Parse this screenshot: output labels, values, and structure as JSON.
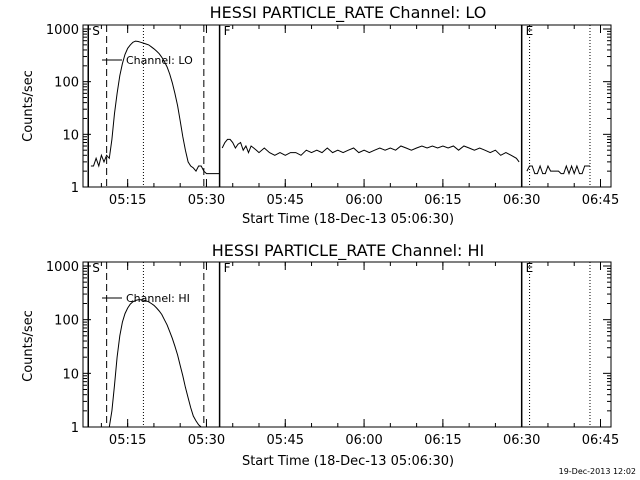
{
  "chart_data": [
    {
      "type": "line",
      "title": "HESSI PARTICLE_RATE Channel: LO",
      "xlabel": "Start Time (18-Dec-13 05:06:30)",
      "ylabel": "Counts/sec",
      "y_scale": "log",
      "xlim": [
        "05:06:30",
        "06:47:00"
      ],
      "ylim": [
        1,
        1000
      ],
      "x_ticks": [
        "05:15",
        "05:30",
        "05:45",
        "06:00",
        "06:15",
        "06:30",
        "06:45"
      ],
      "y_ticks": [
        "1",
        "10",
        "100",
        "1000"
      ],
      "legend": "Channel: LO",
      "markers": [
        {
          "label": "S",
          "time": "05:07:30",
          "style": "solid"
        },
        {
          "label": "",
          "time": "05:11:00",
          "style": "dashed"
        },
        {
          "label": "",
          "time": "05:18:00",
          "style": "dotted"
        },
        {
          "label": "",
          "time": "05:29:30",
          "style": "dashed"
        },
        {
          "label": "F",
          "time": "05:32:30",
          "style": "solid"
        },
        {
          "label": "E",
          "time": "06:30:00",
          "style": "solid"
        },
        {
          "label": "",
          "time": "06:31:30",
          "style": "dotted"
        },
        {
          "label": "",
          "time": "06:43:00",
          "style": "dotted"
        }
      ],
      "series": [
        {
          "segments": [
            {
              "time": [
                "05:08:00",
                "05:08:30",
                "05:09:00",
                "05:09:30",
                "05:10:00",
                "05:10:30",
                "05:11:00",
                "05:11:30",
                "05:12:00",
                "05:12:30",
                "05:13:00",
                "05:13:30",
                "05:14:00",
                "05:14:30",
                "05:15:00",
                "05:15:30",
                "05:16:00",
                "05:16:30",
                "05:17:00",
                "05:17:30",
                "05:18:00",
                "05:18:30",
                "05:19:00",
                "05:19:30",
                "05:20:00",
                "05:20:30",
                "05:21:00",
                "05:21:30",
                "05:22:00",
                "05:22:30",
                "05:23:00",
                "05:23:30",
                "05:24:00",
                "05:24:30",
                "05:25:00",
                "05:25:30",
                "05:26:00",
                "05:26:30",
                "05:27:00",
                "05:27:30",
                "05:28:00",
                "05:28:30",
                "05:29:00",
                "05:29:30",
                "05:30:00",
                "05:30:30",
                "05:31:00",
                "05:31:30",
                "05:32:00",
                "05:32:30"
              ],
              "counts": [
                2.5,
                2.5,
                3.5,
                2.5,
                4,
                3,
                4,
                3.5,
                8,
                25,
                60,
                130,
                220,
                330,
                430,
                500,
                560,
                590,
                580,
                560,
                540,
                520,
                500,
                460,
                420,
                380,
                340,
                290,
                240,
                190,
                140,
                95,
                60,
                35,
                18,
                9,
                5,
                3,
                2.5,
                2.3,
                2,
                2.5,
                2.5,
                2,
                1.8,
                1.8,
                1.8,
                1.8,
                1.8,
                1.8
              ]
            },
            {
              "time": [
                "05:33:00",
                "05:33:30",
                "05:34:00",
                "05:34:30",
                "05:35:00",
                "05:35:30",
                "05:36:00",
                "05:36:30",
                "05:37:00",
                "05:37:30",
                "05:38:00",
                "05:38:30",
                "05:39:00",
                "05:39:30",
                "05:40:00",
                "05:41:00",
                "05:42:00",
                "05:43:00",
                "05:44:00",
                "05:45:00",
                "05:46:00",
                "05:47:00",
                "05:48:00",
                "05:49:00",
                "05:50:00",
                "05:51:00",
                "05:52:00",
                "05:53:00",
                "05:54:00",
                "05:55:00",
                "05:56:00",
                "05:57:00",
                "05:58:00",
                "05:59:00",
                "06:00:00",
                "06:01:00",
                "06:02:00",
                "06:03:00",
                "06:04:00",
                "06:05:00",
                "06:06:00",
                "06:07:00",
                "06:08:00",
                "06:09:00",
                "06:10:00",
                "06:11:00",
                "06:12:00",
                "06:13:00",
                "06:14:00",
                "06:15:00",
                "06:16:00",
                "06:17:00",
                "06:18:00",
                "06:19:00",
                "06:20:00",
                "06:21:00",
                "06:22:00",
                "06:23:00",
                "06:24:00",
                "06:25:00",
                "06:26:00",
                "06:27:00",
                "06:28:00",
                "06:29:00",
                "06:29:30"
              ],
              "counts": [
                5.5,
                7,
                8,
                8,
                7,
                5.5,
                6.5,
                7,
                5,
                6,
                4.5,
                6,
                5.5,
                5,
                4.5,
                5.5,
                4.5,
                4,
                4.5,
                4,
                4.5,
                4.5,
                4,
                5,
                4.5,
                5,
                4.5,
                5.5,
                4.5,
                5,
                4.5,
                5,
                5.5,
                4.5,
                5,
                4.5,
                5,
                5.5,
                5,
                5.5,
                5,
                6,
                5.5,
                5,
                5.5,
                6,
                5.5,
                6,
                5.5,
                6,
                5.5,
                6,
                5,
                6,
                5.5,
                5,
                5.5,
                5,
                4.5,
                5,
                4,
                4.5,
                4,
                3.5,
                3
              ]
            },
            {
              "time": [
                "06:31:00",
                "06:31:30",
                "06:32:00",
                "06:32:30",
                "06:33:00",
                "06:33:30",
                "06:34:00",
                "06:34:30",
                "06:35:00",
                "06:35:30",
                "06:36:00",
                "06:36:30",
                "06:37:00",
                "06:37:30",
                "06:38:00",
                "06:38:30",
                "06:39:00",
                "06:39:30",
                "06:40:00",
                "06:40:30",
                "06:41:00",
                "06:41:30",
                "06:42:00",
                "06:42:30",
                "06:43:00"
              ],
              "counts": [
                2,
                2.5,
                2.5,
                1.8,
                1.8,
                2.5,
                1.8,
                1.8,
                2.5,
                2,
                2,
                2,
                2,
                1.8,
                1.8,
                2.5,
                1.8,
                2.5,
                1.8,
                2.5,
                1.8,
                1.8,
                2.5,
                2.5,
                2.5
              ]
            }
          ]
        }
      ]
    },
    {
      "type": "line",
      "title": "HESSI PARTICLE_RATE Channel: HI",
      "xlabel": "Start Time (18-Dec-13 05:06:30)",
      "ylabel": "Counts/sec",
      "y_scale": "log",
      "xlim": [
        "05:06:30",
        "06:47:00"
      ],
      "ylim": [
        1,
        1000
      ],
      "x_ticks": [
        "05:15",
        "05:30",
        "05:45",
        "06:00",
        "06:15",
        "06:30",
        "06:45"
      ],
      "y_ticks": [
        "1",
        "10",
        "100",
        "1000"
      ],
      "legend": "Channel: HI",
      "markers": [
        {
          "label": "S",
          "time": "05:07:30",
          "style": "solid"
        },
        {
          "label": "",
          "time": "05:11:00",
          "style": "dashed"
        },
        {
          "label": "",
          "time": "05:18:00",
          "style": "dotted"
        },
        {
          "label": "",
          "time": "05:29:30",
          "style": "dashed"
        },
        {
          "label": "F",
          "time": "05:32:30",
          "style": "solid"
        },
        {
          "label": "E",
          "time": "06:30:00",
          "style": "solid"
        },
        {
          "label": "",
          "time": "06:31:30",
          "style": "dotted"
        },
        {
          "label": "",
          "time": "06:43:00",
          "style": "dotted"
        }
      ],
      "series": [
        {
          "segments": [
            {
              "time": [
                "05:11:30",
                "05:12:00",
                "05:12:30",
                "05:13:00",
                "05:13:30",
                "05:14:00",
                "05:14:30",
                "05:15:00",
                "05:15:30",
                "05:16:00",
                "05:16:30",
                "05:17:00",
                "05:17:30",
                "05:18:00",
                "05:18:30",
                "05:19:00",
                "05:19:30",
                "05:20:00",
                "05:20:30",
                "05:21:00",
                "05:21:30",
                "05:22:00",
                "05:22:30",
                "05:23:00",
                "05:23:30",
                "05:24:00",
                "05:24:30",
                "05:25:00",
                "05:25:30",
                "05:26:00",
                "05:26:30",
                "05:27:00",
                "05:27:30",
                "05:28:00",
                "05:28:30",
                "05:29:00",
                "05:29:30"
              ],
              "counts": [
                1,
                2,
                6,
                20,
                50,
                90,
                130,
                165,
                195,
                215,
                228,
                235,
                236,
                232,
                225,
                215,
                200,
                185,
                165,
                145,
                125,
                100,
                80,
                60,
                45,
                32,
                22,
                14,
                9,
                5.5,
                3.5,
                2.3,
                1.6,
                1.3,
                1.1,
                1,
                1
              ]
            }
          ]
        }
      ]
    }
  ],
  "footer": {
    "timestamp": "19-Dec-2013 12:02"
  }
}
